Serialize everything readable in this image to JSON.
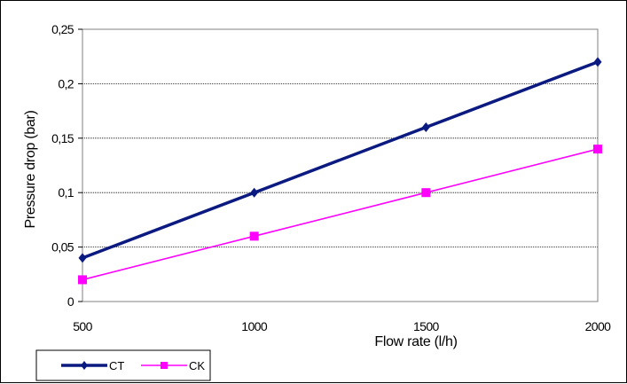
{
  "chart_data": {
    "type": "line",
    "x": [
      500,
      1000,
      1500,
      2000
    ],
    "x_tick_labels": [
      "500",
      "1000",
      "1500",
      "2000"
    ],
    "y_tick_labels": [
      "0",
      "0,05",
      "0,1",
      "0,15",
      "0,2",
      "0,25"
    ],
    "y_ticks": [
      0,
      0.05,
      0.1,
      0.15,
      0.2,
      0.25
    ],
    "xlim": [
      500,
      2000
    ],
    "ylim": [
      0,
      0.25
    ],
    "xlabel": "Flow rate (l/h)",
    "ylabel": "Pressure drop (bar)",
    "grid": "horizontal dashed",
    "legend_position": "bottom-left",
    "series": [
      {
        "name": "CT",
        "values": [
          0.04,
          0.1,
          0.16,
          0.22
        ],
        "color": "#0b1a80",
        "marker": "diamond"
      },
      {
        "name": "CK",
        "values": [
          0.02,
          0.06,
          0.1,
          0.14
        ],
        "color": "#ff00ff",
        "marker": "square"
      }
    ]
  }
}
